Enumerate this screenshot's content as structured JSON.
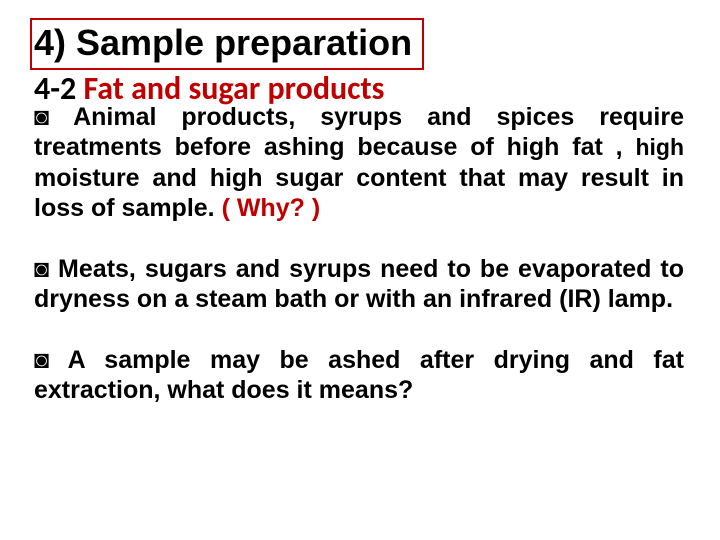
{
  "heading": "4) Sample preparation",
  "subheading_prefix": "4-2 ",
  "subheading_red": "Fat and sugar products",
  "bullet_glyph": "◙",
  "para1_a": " Animal products, syrups and spices require treatments before ashing because of high fat , ",
  "para1_small": "high ",
  "para1_b": "moisture and high sugar content that may result in loss of sample. ",
  "para1_why": "( Why? )",
  "para2": " Meats, sugars and syrups need to be evaporated to dryness on a steam bath or with an infrared (IR) lamp.",
  "para3": " A sample may be ashed after drying and fat extraction, what does it means?",
  "colors": {
    "accent": "#c00000",
    "text": "#000000",
    "background": "#ffffff"
  }
}
